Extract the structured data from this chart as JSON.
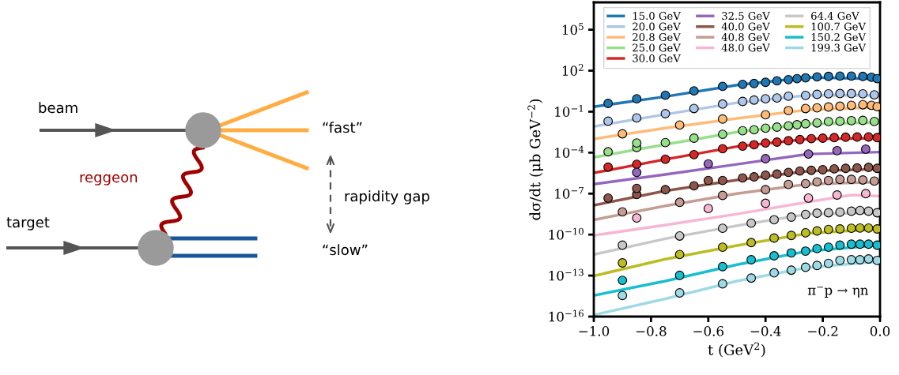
{
  "chart_data": [
    {
      "type": "other",
      "annotations": [
        "beam",
        "target",
        "reggeon",
        "“fast”",
        "rapidity gap",
        "“slow”"
      ]
    },
    {
      "type": "scatter",
      "xlabel": "t (GeV$^{2}$)",
      "ylabel": "dσ/dt (μb GeV$^{−2}$)",
      "annotations": [
        "π$^{−}$p → ηn"
      ],
      "log": "y",
      "marker": "circle",
      "legend": "top",
      "grid": false,
      "xlim": [
        -1.0,
        0.0
      ],
      "xticks": [
        {
          "value": -1.0,
          "label": "−1.0"
        },
        {
          "value": -0.8,
          "label": "−0.8"
        },
        {
          "value": -0.6,
          "label": "−0.6"
        },
        {
          "value": -0.4,
          "label": "−0.4"
        },
        {
          "value": -0.2,
          "label": "−0.2"
        },
        {
          "value": 0.0,
          "label": "0.0"
        }
      ],
      "ylim": [
        1e-16,
        10000000.0
      ],
      "yticks": [
        {
          "value": 1e-16,
          "label": "10$^{−16}$"
        },
        {
          "value": 1e-13,
          "label": "10$^{−13}$"
        },
        {
          "value": 1e-10,
          "label": "10$^{−10}$"
        },
        {
          "value": 1e-07,
          "label": "10$^{−7}$"
        },
        {
          "value": 0.0001,
          "label": "10$^{−4}$"
        },
        {
          "value": 0.1,
          "label": "10$^{−1}$"
        },
        {
          "value": 100,
          "label": "10$^{2}$"
        },
        {
          "value": 100000,
          "label": "10$^{5}$"
        }
      ],
      "series": [
        {
          "type": "line",
          "marker": "none",
          "name": "15.0 GeV",
          "color": "#1f77b4",
          "x": [
            -1,
            -0.75,
            -0.5,
            -0.25,
            0
          ],
          "values": [
            0.23,
            1.26,
            8.9,
            32,
            25
          ]
        },
        {
          "type": "line",
          "marker": "none",
          "name": "20.0 GeV",
          "color": "#aec7e8",
          "x": [
            -1,
            -0.75,
            -0.5,
            -0.25,
            0
          ],
          "values": [
            0.0083,
            0.063,
            0.45,
            1.6,
            1.55
          ]
        },
        {
          "type": "line",
          "marker": "none",
          "name": "20.8 GeV",
          "color": "#ffbb78",
          "x": [
            -1,
            -0.75,
            -0.5,
            -0.25,
            0
          ],
          "values": [
            0.001,
            0.0063,
            0.032,
            0.14,
            0.21
          ]
        },
        {
          "type": "line",
          "marker": "none",
          "name": "25.0 GeV",
          "color": "#98df8a",
          "x": [
            -1,
            -0.75,
            -0.5,
            -0.25,
            0
          ],
          "values": [
            4.5e-05,
            0.0004,
            0.0032,
            0.0126,
            0.016
          ]
        },
        {
          "type": "line",
          "marker": "none",
          "name": "30.0 GeV",
          "color": "#d62728",
          "x": [
            -1,
            -0.75,
            -0.5,
            -0.25,
            0
          ],
          "values": [
            3.3e-06,
            3.2e-05,
            0.00028,
            0.001,
            0.00115
          ]
        },
        {
          "type": "line",
          "marker": "none",
          "name": "32.5 GeV",
          "color": "#9467bd",
          "x": [
            -1,
            -0.75,
            -0.5,
            -0.25,
            0
          ],
          "values": [
            4.9e-07,
            2.5e-06,
            1.4e-05,
            7.9e-05,
            0.00011
          ]
        },
        {
          "type": "line",
          "marker": "none",
          "name": "40.0 GeV",
          "color": "#8c564b",
          "x": [
            -1,
            -0.75,
            -0.5,
            -0.25,
            0
          ],
          "values": [
            1.4e-08,
            1.6e-07,
            1e-06,
            4.5e-06,
            6.3e-06
          ]
        },
        {
          "type": "line",
          "marker": "none",
          "name": "40.8 GeV",
          "color": "#c49c94",
          "x": [
            -1,
            -0.75,
            -0.5,
            -0.25,
            0
          ],
          "values": [
            1.2e-09,
            1.26e-08,
            1e-07,
            5e-07,
            7.2e-07
          ]
        },
        {
          "type": "line",
          "marker": "none",
          "name": "48.0 GeV",
          "color": "#f7b6d2",
          "x": [
            -1,
            -0.75,
            -0.5,
            -0.25,
            -0.1,
            0
          ],
          "values": [
            8.7e-11,
            5e-10,
            3.2e-09,
            2.5e-08,
            7.9e-08,
            6.5e-08
          ]
        },
        {
          "type": "line",
          "marker": "none",
          "name": "64.4 GeV",
          "color": "#c7c7c7",
          "x": [
            -1,
            -0.75,
            -0.5,
            -0.25,
            0
          ],
          "values": [
            3.5e-12,
            5e-11,
            4.5e-10,
            3.2e-09,
            4e-09
          ]
        },
        {
          "type": "line",
          "marker": "none",
          "name": "100.7 GeV",
          "color": "#bcbd22",
          "x": [
            -1,
            -0.75,
            -0.5,
            -0.25,
            0
          ],
          "values": [
            9.5e-14,
            1.6e-12,
            1.6e-11,
            1.26e-10,
            2.6e-10
          ]
        },
        {
          "type": "line",
          "marker": "none",
          "name": "150.2 GeV",
          "color": "#17becf",
          "x": [
            -1,
            -0.75,
            -0.5,
            -0.25,
            0
          ],
          "values": [
            3.5e-15,
            4e-14,
            6.3e-13,
            6.3e-12,
            1.7e-11
          ]
        },
        {
          "type": "line",
          "marker": "none",
          "name": "199.3 GeV",
          "color": "#9edae5",
          "x": [
            -1,
            -0.75,
            -0.5,
            -0.25,
            0
          ],
          "values": [
            1.3e-16,
            2e-15,
            4e-14,
            4e-13,
            1.07e-12
          ]
        },
        {
          "type": "scatter",
          "color": "#1f77b4",
          "x": [
            -0.95,
            -0.85,
            -0.75,
            -0.65,
            -0.55,
            -0.48,
            -0.44,
            -0.4,
            -0.36,
            -0.32,
            -0.29,
            -0.26,
            -0.22,
            -0.18,
            -0.14,
            -0.1,
            -0.06,
            -0.03,
            -0.01
          ],
          "values": [
            0.4,
            0.87,
            1.6,
            3.3,
            7.1,
            10,
            11.5,
            14,
            18,
            22,
            26,
            30,
            35,
            38,
            40,
            40,
            38,
            33,
            26
          ]
        },
        {
          "type": "scatter",
          "color": "#aec7e8",
          "x": [
            -0.95,
            -0.85,
            -0.75,
            -0.65,
            -0.55,
            -0.48,
            -0.44,
            -0.4,
            -0.36,
            -0.32,
            -0.26,
            -0.22,
            -0.18,
            -0.14,
            -0.1,
            -0.06,
            -0.02
          ],
          "values": [
            0.02,
            0.035,
            0.071,
            0.17,
            0.36,
            0.56,
            0.71,
            0.87,
            1.0,
            1.35,
            1.55,
            1.86,
            2.0,
            2.1,
            2.1,
            2.0,
            1.7
          ]
        },
        {
          "type": "scatter",
          "color": "#ffbb78",
          "x": [
            -0.9,
            -0.7,
            -0.55,
            -0.4,
            -0.32,
            -0.26,
            -0.22,
            -0.18,
            -0.14,
            -0.1,
            -0.06,
            -0.03,
            -0.01
          ],
          "values": [
            0.0024,
            0.0105,
            0.029,
            0.059,
            0.12,
            0.17,
            0.19,
            0.22,
            0.25,
            0.29,
            0.32,
            0.29,
            0.23
          ]
        },
        {
          "type": "scatter",
          "color": "#98df8a",
          "x": [
            -0.95,
            -0.85,
            -0.85,
            -0.75,
            -0.65,
            -0.55,
            -0.48,
            -0.44,
            -0.4,
            -0.36,
            -0.32,
            -0.29,
            -0.26,
            -0.22,
            -0.18,
            -0.14,
            -0.1,
            -0.06,
            -0.02
          ],
          "values": [
            0.000115,
            0.00024,
            0.00051,
            0.00054,
            0.00115,
            0.0022,
            0.004,
            0.0047,
            0.0062,
            0.0074,
            0.0091,
            0.011,
            0.013,
            0.015,
            0.019,
            0.02,
            0.022,
            0.023,
            0.019
          ]
        },
        {
          "type": "scatter",
          "color": "#d62728",
          "x": [
            -0.95,
            -0.85,
            -0.75,
            -0.65,
            -0.55,
            -0.48,
            -0.44,
            -0.4,
            -0.36,
            -0.32,
            -0.28,
            -0.24,
            -0.2,
            -0.16,
            -0.12,
            -0.08,
            -0.04,
            -0.01
          ],
          "values": [
            8.7e-06,
            1.4e-05,
            3.3e-05,
            7.1e-05,
            0.000195,
            0.0003,
            0.00038,
            0.00051,
            0.00059,
            0.00074,
            0.00091,
            0.00105,
            0.00115,
            0.00126,
            0.00135,
            0.0014,
            0.0014,
            0.00126
          ]
        },
        {
          "type": "scatter",
          "color": "#9467bd",
          "x": [
            -0.85,
            -0.6,
            -0.4,
            -0.25,
            -0.15,
            -0.05
          ],
          "values": [
            3.6e-06,
            1.5e-05,
            3.6e-05,
            7.9e-05,
            0.00014,
            0.00018
          ]
        },
        {
          "type": "scatter",
          "color": "#8c564b",
          "x": [
            -0.95,
            -0.85,
            -0.85,
            -0.75,
            -0.65,
            -0.6,
            -0.55,
            -0.48,
            -0.44,
            -0.4,
            -0.36,
            -0.32,
            -0.28,
            -0.24,
            -0.2,
            -0.16,
            -0.12,
            -0.08,
            -0.04,
            -0.01
          ],
          "values": [
            4.7e-08,
            8.7e-08,
            2.4e-07,
            1.95e-07,
            3.7e-07,
            9.1e-07,
            9.1e-07,
            1.4e-06,
            1.7e-06,
            2.2e-06,
            2.7e-06,
            3.6e-06,
            4.5e-06,
            5.1e-06,
            5.6e-06,
            6.5e-06,
            7.1e-06,
            7.6e-06,
            8.3e-06,
            7.1e-06
          ]
        },
        {
          "type": "scatter",
          "color": "#c49c94",
          "x": [
            -0.9,
            -0.7,
            -0.55,
            -0.4,
            -0.32,
            -0.26,
            -0.22,
            -0.18,
            -0.14,
            -0.1,
            -0.06,
            -0.02
          ],
          "values": [
            4.6e-09,
            2.3e-08,
            7.4e-08,
            1.95e-07,
            4.7e-07,
            5.4e-07,
            7.2e-07,
            9.1e-07,
            1.1e-06,
            1.1e-06,
            1e-06,
            8.3e-07
          ]
        },
        {
          "type": "scatter",
          "color": "#f7b6d2",
          "x": [
            -0.85,
            -0.6,
            -0.4,
            -0.25,
            -0.15,
            -0.05
          ],
          "values": [
            1.66e-09,
            8.1e-09,
            1.95e-08,
            4.7e-08,
            7.9e-08,
            1e-07
          ]
        },
        {
          "type": "scatter",
          "color": "#c7c7c7",
          "x": [
            -0.9,
            -0.7,
            -0.55,
            -0.45,
            -0.37,
            -0.31,
            -0.26,
            -0.22,
            -0.18,
            -0.14,
            -0.1,
            -0.07,
            -0.04,
            -0.01
          ],
          "values": [
            1.7e-11,
            7.9e-11,
            2.9e-10,
            6.9e-10,
            1.23e-09,
            1.9e-09,
            3e-09,
            3.7e-09,
            4e-09,
            4.4e-09,
            5.2e-09,
            5.8e-09,
            5.2e-09,
            4e-09
          ]
        },
        {
          "type": "scatter",
          "color": "#bcbd22",
          "x": [
            -0.9,
            -0.7,
            -0.55,
            -0.45,
            -0.37,
            -0.31,
            -0.26,
            -0.22,
            -0.18,
            -0.14,
            -0.1,
            -0.07,
            -0.04,
            -0.01
          ],
          "values": [
            8.5e-13,
            3.5e-12,
            1.2e-11,
            2.6e-11,
            5.6e-11,
            8.7e-11,
            1.35e-10,
            1.86e-10,
            2.4e-10,
            2.6e-10,
            2.9e-10,
            3e-10,
            3e-10,
            2.6e-10
          ]
        },
        {
          "type": "scatter",
          "color": "#17becf",
          "x": [
            -0.9,
            -0.7,
            -0.55,
            -0.45,
            -0.37,
            -0.31,
            -0.26,
            -0.22,
            -0.18,
            -0.14,
            -0.1,
            -0.07,
            -0.04,
            -0.01
          ],
          "values": [
            4.5e-14,
            1.05e-13,
            4.5e-13,
            1.45e-12,
            2.8e-12,
            4.6e-12,
            6.2e-12,
            9.5e-12,
            1.2e-11,
            1.7e-11,
            2e-11,
            2e-11,
            2e-11,
            1.7e-11
          ]
        },
        {
          "type": "scatter",
          "color": "#9edae5",
          "x": [
            -0.9,
            -0.7,
            -0.55,
            -0.45,
            -0.37,
            -0.31,
            -0.26,
            -0.22,
            -0.18,
            -0.14,
            -0.1,
            -0.07,
            -0.04,
            -0.01
          ],
          "values": [
            3.5e-15,
            5.4e-15,
            2.5e-14,
            6.6e-14,
            1.6e-13,
            2.5e-13,
            4.1e-13,
            5.5e-13,
            7.8e-13,
            1.3e-12,
            1.45e-12,
            1.45e-12,
            1.66e-12,
            1.3e-12
          ]
        }
      ]
    }
  ]
}
